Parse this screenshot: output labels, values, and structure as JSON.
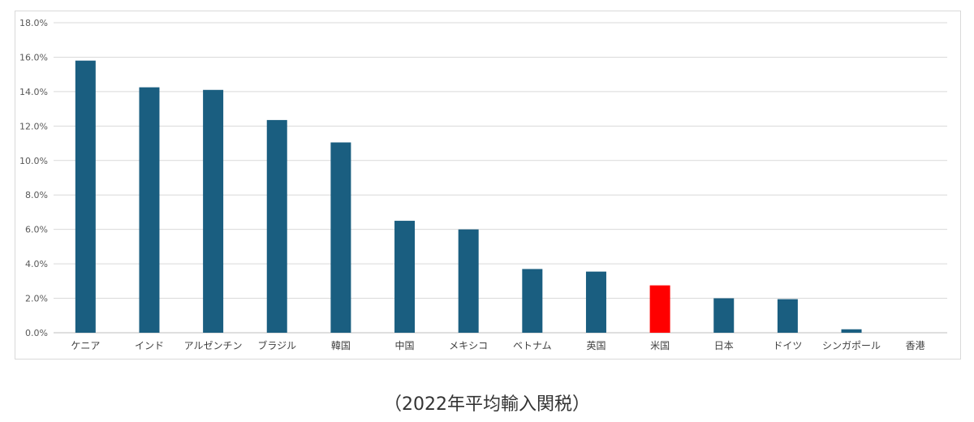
{
  "chart_data": {
    "type": "bar",
    "categories": [
      "ケニア",
      "インド",
      "アルゼンチン",
      "ブラジル",
      "韓国",
      "中国",
      "メキシコ",
      "ベトナム",
      "英国",
      "米国",
      "日本",
      "ドイツ",
      "シンガポール",
      "香港"
    ],
    "values": [
      15.8,
      14.25,
      14.1,
      12.35,
      11.05,
      6.5,
      6.0,
      3.7,
      3.55,
      2.75,
      2.0,
      1.95,
      0.2,
      0.0
    ],
    "y_ticks": [
      "0.0%",
      "2.0%",
      "4.0%",
      "6.0%",
      "8.0%",
      "10.0%",
      "12.0%",
      "14.0%",
      "16.0%",
      "18.0%"
    ],
    "ylim": [
      0,
      18
    ],
    "grid": true,
    "bar_color": "#1a5e80",
    "highlight": {
      "category": "米国",
      "color": "#ff0000"
    }
  },
  "caption": "（2022年平均輸入関税）"
}
